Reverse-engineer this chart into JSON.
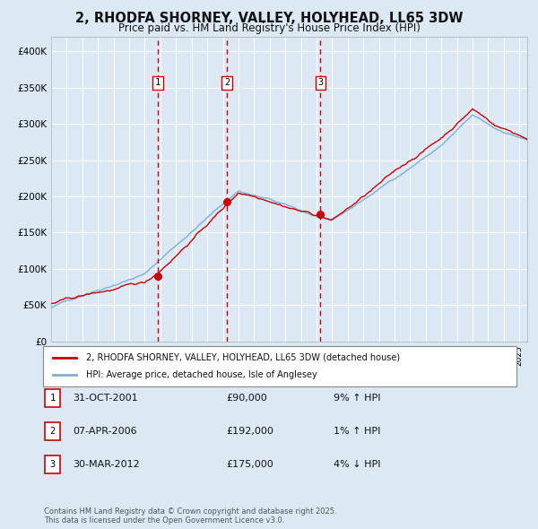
{
  "title": "2, RHODFA SHORNEY, VALLEY, HOLYHEAD, LL65 3DW",
  "subtitle": "Price paid vs. HM Land Registry's House Price Index (HPI)",
  "legend_house": "2, RHODFA SHORNEY, VALLEY, HOLYHEAD, LL65 3DW (detached house)",
  "legend_hpi": "HPI: Average price, detached house, Isle of Anglesey",
  "footer": "Contains HM Land Registry data © Crown copyright and database right 2025.\nThis data is licensed under the Open Government Licence v3.0.",
  "transactions": [
    {
      "num": 1,
      "date": "31-OCT-2001",
      "price": 90000,
      "pct": "9%",
      "dir": "↑",
      "x_year": 2001.83
    },
    {
      "num": 2,
      "date": "07-APR-2006",
      "price": 192000,
      "pct": "1%",
      "dir": "↑",
      "x_year": 2006.27
    },
    {
      "num": 3,
      "date": "30-MAR-2012",
      "price": 175000,
      "pct": "4%",
      "dir": "↓",
      "x_year": 2012.25
    }
  ],
  "ylim": [
    0,
    420000
  ],
  "xlim_start": 1995.0,
  "xlim_end": 2025.5,
  "background_color": "#dce9f5",
  "plot_bg_color": "#dce9f5",
  "grid_color": "#ffffff",
  "hpi_color": "#7ab0d4",
  "house_color": "#cc0000",
  "vline_color": "#cc0000",
  "marker_color": "#cc0000",
  "label_bg": "#ffffff",
  "label_border": "#cc0000"
}
